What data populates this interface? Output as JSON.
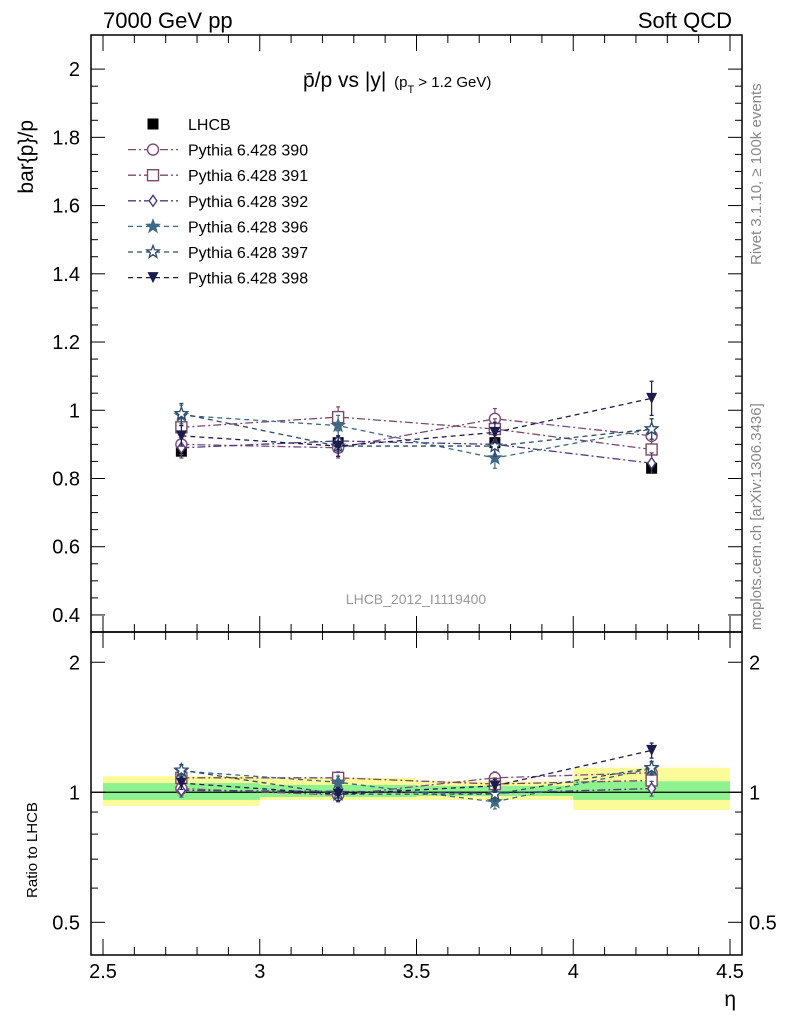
{
  "header": {
    "left": "7000 GeV pp",
    "right": "Soft QCD"
  },
  "side_labels": {
    "rivet": "Rivet 3.1.10, ≥ 100k events",
    "mcplots": "mcplots.cern.ch [arXiv:1306.3436]"
  },
  "main_plot": {
    "title_main": "p̄/p vs |y|",
    "title_sub": "(p",
    "title_sub_T": "T",
    "title_sub_rest": " > 1.2 GeV)",
    "ylabel": "bar{p}/p",
    "watermark": "LHCB_2012_I1119400"
  },
  "ratio_plot": {
    "ylabel": "Ratio to LHCB"
  },
  "xlabel": "η",
  "chart_data": [
    {
      "type": "scatter",
      "title": "p̄/p vs |y| (pT > 1.2 GeV)",
      "xlabel": "η",
      "ylabel": "bar{p}/p",
      "xlim": [
        2.5,
        4.5
      ],
      "ylim": [
        0.35,
        2.1
      ],
      "x_ticks": [
        "2.5",
        "3",
        "3.5",
        "4",
        "4.5"
      ],
      "y_ticks": [
        "0.4",
        "0.6",
        "0.8",
        "1",
        "1.2",
        "1.4",
        "1.6",
        "1.8",
        "2"
      ],
      "grid": false,
      "legend_position": "top-left",
      "x": [
        2.75,
        3.25,
        3.75,
        4.25
      ],
      "series": [
        {
          "name": "LHCB",
          "values": [
            0.88,
            0.905,
            0.905,
            0.83
          ],
          "errors": [
            0.01,
            0.01,
            0.01,
            0.01
          ],
          "color": "#000000",
          "marker": "square-filled",
          "dash": "none"
        },
        {
          "name": "Pythia 6.428 390",
          "values": [
            0.9,
            0.89,
            0.975,
            0.925
          ],
          "errors": [
            0.03,
            0.03,
            0.03,
            0.03
          ],
          "color": "#7b4a7b",
          "marker": "circle-open",
          "dash": "8,3,2,3"
        },
        {
          "name": "Pythia 6.428 391",
          "values": [
            0.95,
            0.98,
            0.945,
            0.885
          ],
          "errors": [
            0.03,
            0.03,
            0.03,
            0.03
          ],
          "color": "#7a4a66",
          "marker": "square-open",
          "dash": "8,3,2,3"
        },
        {
          "name": "Pythia 6.428 392",
          "values": [
            0.89,
            0.91,
            0.9,
            0.845
          ],
          "errors": [
            0.03,
            0.03,
            0.03,
            0.03
          ],
          "color": "#4e3b7e",
          "marker": "diamond-open",
          "dash": "8,3,2,3"
        },
        {
          "name": "Pythia 6.428 396",
          "values": [
            0.985,
            0.955,
            0.86,
            0.945
          ],
          "errors": [
            0.03,
            0.03,
            0.03,
            0.03
          ],
          "color": "#3f6a85",
          "marker": "star-filled",
          "dash": "5,4"
        },
        {
          "name": "Pythia 6.428 397",
          "values": [
            0.99,
            0.895,
            0.895,
            0.945
          ],
          "errors": [
            0.03,
            0.03,
            0.03,
            0.03
          ],
          "color": "#2c4a6a",
          "marker": "star-open",
          "dash": "5,4"
        },
        {
          "name": "Pythia 6.428 398",
          "values": [
            0.925,
            0.895,
            0.935,
            1.035
          ],
          "errors": [
            0.03,
            0.03,
            0.03,
            0.05
          ],
          "color": "#1c1c4c",
          "marker": "triangle-down-filled",
          "dash": "5,4"
        }
      ]
    },
    {
      "type": "scatter",
      "title": "",
      "xlabel": "η",
      "ylabel": "Ratio to LHCB",
      "xlim": [
        2.5,
        4.5
      ],
      "ylim": [
        0.42,
        2.35
      ],
      "y_scale": "log",
      "y_ticks": [
        "0.5",
        "1",
        "2"
      ],
      "bands": {
        "x_edges": [
          2.5,
          3.0,
          3.5,
          4.0,
          4.5
        ],
        "yellow": [
          [
            0.93,
            1.09
          ],
          [
            0.96,
            1.08
          ],
          [
            0.96,
            1.06
          ],
          [
            0.91,
            1.14
          ]
        ],
        "green": [
          [
            0.96,
            1.05
          ],
          [
            0.975,
            1.04
          ],
          [
            0.98,
            1.035
          ],
          [
            0.96,
            1.06
          ]
        ]
      },
      "x": [
        2.75,
        3.25,
        3.75,
        4.25
      ],
      "series": [
        {
          "name": "Pythia 6.428 390",
          "values": [
            1.02,
            0.985,
            1.08,
            1.11
          ],
          "errors": [
            0.035,
            0.035,
            0.035,
            0.04
          ]
        },
        {
          "name": "Pythia 6.428 391",
          "values": [
            1.08,
            1.08,
            1.045,
            1.065
          ],
          "errors": [
            0.035,
            0.035,
            0.035,
            0.04
          ]
        },
        {
          "name": "Pythia 6.428 392",
          "values": [
            1.01,
            1.005,
            0.995,
            1.02
          ],
          "errors": [
            0.035,
            0.035,
            0.035,
            0.04
          ]
        },
        {
          "name": "Pythia 6.428 396",
          "values": [
            1.12,
            1.055,
            0.95,
            1.135
          ],
          "errors": [
            0.035,
            0.035,
            0.035,
            0.04
          ]
        },
        {
          "name": "Pythia 6.428 397",
          "values": [
            1.125,
            0.99,
            0.99,
            1.14
          ],
          "errors": [
            0.035,
            0.035,
            0.035,
            0.04
          ]
        },
        {
          "name": "Pythia 6.428 398",
          "values": [
            1.05,
            0.99,
            1.035,
            1.25
          ],
          "errors": [
            0.035,
            0.035,
            0.035,
            0.05
          ]
        }
      ]
    }
  ]
}
